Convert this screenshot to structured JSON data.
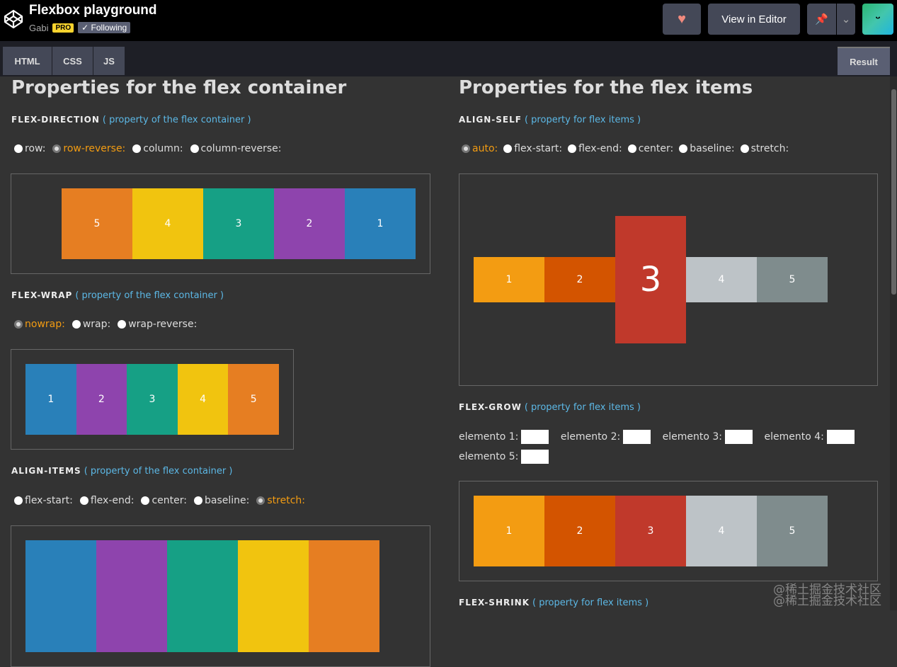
{
  "header": {
    "title": "Flexbox playground",
    "author": "Gabi",
    "pro_badge": "PRO",
    "following": "✓ Following",
    "heart": "♥",
    "view_in_editor": "View in Editor",
    "pin": "📌",
    "chevron": "⌄",
    "avatar": "ᵕ"
  },
  "tabs": [
    "HTML",
    "CSS",
    "JS"
  ],
  "result_tab": "Result",
  "left": {
    "heading": "Properties for the flex container",
    "flex_direction": {
      "name": "FLEX-DIRECTION",
      "note": "( property of the flex container )",
      "options": [
        "row:",
        "row-reverse:",
        "column:",
        "column-reverse:"
      ],
      "selected": "row-reverse:",
      "items": [
        "5",
        "4",
        "3",
        "2",
        "1"
      ]
    },
    "flex_wrap": {
      "name": "FLEX-WRAP",
      "note": "( property of the flex container )",
      "options": [
        "nowrap:",
        "wrap:",
        "wrap-reverse:"
      ],
      "selected": "nowrap:",
      "items": [
        "1",
        "2",
        "3",
        "4",
        "5"
      ]
    },
    "align_items": {
      "name": "ALIGN-ITEMS",
      "note": "( property of the flex container )",
      "options": [
        "flex-start:",
        "flex-end:",
        "center:",
        "baseline:",
        "stretch:"
      ],
      "selected": "stretch:"
    }
  },
  "right": {
    "heading": "Properties for the flex items",
    "align_self": {
      "name": "ALIGN-SELF",
      "note": "( property for flex items )",
      "options": [
        "auto:",
        "flex-start:",
        "flex-end:",
        "center:",
        "baseline:",
        "stretch:"
      ],
      "selected": "auto:",
      "items": [
        "1",
        "2",
        "3",
        "4",
        "5"
      ]
    },
    "flex_grow": {
      "name": "FLEX-GROW",
      "note": "( property for flex items )",
      "fields": [
        "elemento 1:",
        "elemento 2:",
        "elemento 3:",
        "elemento 4:",
        "elemento 5:"
      ],
      "items": [
        "1",
        "2",
        "3",
        "4",
        "5"
      ]
    },
    "flex_shrink": {
      "name": "FLEX-SHRINK",
      "note": "( property for flex items )"
    }
  },
  "colors": {
    "left": [
      "#2980b9",
      "#8e44ad",
      "#16a085",
      "#f1c40f",
      "#e67e22"
    ],
    "right": [
      "#f39c12",
      "#d35400",
      "#c0392b",
      "#bdc3c7",
      "#7f8c8d"
    ]
  },
  "watermark": "@稀土掘金技术社区"
}
